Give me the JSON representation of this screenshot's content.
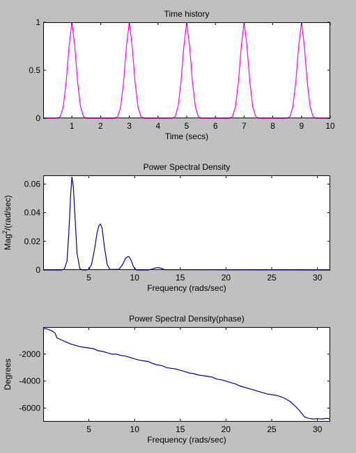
{
  "window": {
    "background": "#c0c0c0"
  },
  "chart_data": [
    {
      "type": "line",
      "title": "Time history",
      "xlabel": "Time (secs)",
      "ylabel": "",
      "xlim": [
        0,
        10
      ],
      "ylim": [
        0,
        1
      ],
      "xticks": [
        1,
        2,
        3,
        4,
        5,
        6,
        7,
        8,
        9,
        10
      ],
      "xtick_labels": [
        "1",
        "2",
        "3",
        "4",
        "5",
        "6",
        "7",
        "8",
        "9",
        "10"
      ],
      "yticks": [
        0,
        0.5,
        1
      ],
      "ytick_labels": [
        "0",
        "0.5",
        "1"
      ],
      "grid": false,
      "series": [
        {
          "color": "#ff00ff",
          "x": [
            0,
            0.5,
            0.6,
            0.7,
            0.8,
            0.9,
            1.0,
            1.1,
            1.2,
            1.3,
            1.4,
            1.5,
            2.5,
            2.6,
            2.7,
            2.8,
            2.9,
            3.0,
            3.1,
            3.2,
            3.3,
            3.4,
            3.5,
            4.5,
            4.6,
            4.7,
            4.8,
            4.9,
            5.0,
            5.1,
            5.2,
            5.3,
            5.4,
            5.5,
            6.5,
            6.6,
            6.7,
            6.8,
            6.9,
            7.0,
            7.1,
            7.2,
            7.3,
            7.4,
            7.5,
            8.5,
            8.6,
            8.7,
            8.8,
            8.9,
            9.0,
            9.1,
            9.2,
            9.3,
            9.4,
            9.5,
            10
          ],
          "y": [
            0,
            0,
            0.02,
            0.12,
            0.38,
            0.75,
            1.0,
            0.75,
            0.38,
            0.12,
            0.02,
            0,
            0,
            0.02,
            0.12,
            0.38,
            0.75,
            1.0,
            0.75,
            0.38,
            0.12,
            0.02,
            0,
            0,
            0.02,
            0.12,
            0.38,
            0.75,
            1.0,
            0.75,
            0.38,
            0.12,
            0.02,
            0,
            0,
            0.02,
            0.12,
            0.38,
            0.75,
            1.0,
            0.75,
            0.38,
            0.12,
            0.02,
            0,
            0,
            0.02,
            0.12,
            0.38,
            0.75,
            1.0,
            0.75,
            0.38,
            0.12,
            0.02,
            0,
            0
          ]
        }
      ]
    },
    {
      "type": "line",
      "title": "Power Spectral Density",
      "xlabel": "Frequency (rads/sec)",
      "ylabel": "Mag^2/(rad/sec)",
      "xlim": [
        0,
        31.4
      ],
      "ylim": [
        0,
        0.066
      ],
      "xticks": [
        5,
        10,
        15,
        20,
        25,
        30
      ],
      "xtick_labels": [
        "5",
        "10",
        "15",
        "20",
        "25",
        "30"
      ],
      "yticks": [
        0,
        0.02,
        0.04,
        0.06
      ],
      "ytick_labels": [
        "0",
        "0.02",
        "0.04",
        "0.06"
      ],
      "grid": false,
      "series": [
        {
          "color": "#00008b",
          "x": [
            0,
            2.0,
            2.3,
            2.6,
            2.8,
            3.0,
            3.14,
            3.3,
            3.5,
            3.7,
            4.0,
            4.3,
            4.7,
            5.0,
            5.3,
            5.6,
            5.9,
            6.1,
            6.28,
            6.45,
            6.7,
            7.0,
            7.3,
            8.3,
            8.7,
            9.0,
            9.3,
            9.42,
            9.6,
            9.9,
            10.2,
            11.5,
            12.0,
            12.3,
            12.57,
            12.9,
            13.3,
            31.4
          ],
          "y": [
            0,
            0,
            0.0005,
            0.006,
            0.025,
            0.052,
            0.065,
            0.058,
            0.035,
            0.012,
            0.001,
            0,
            0,
            0.0005,
            0.004,
            0.014,
            0.026,
            0.031,
            0.032,
            0.029,
            0.016,
            0.004,
            0.0003,
            0.0005,
            0.004,
            0.008,
            0.0095,
            0.009,
            0.007,
            0.002,
            0,
            0,
            0.0008,
            0.0015,
            0.0017,
            0.0012,
            0.0002,
            0
          ]
        }
      ]
    },
    {
      "type": "line",
      "title": "Power Spectral Density(phase)",
      "xlabel": "Frequency (rads/sec)",
      "ylabel": "Degrees",
      "xlim": [
        0,
        31.4
      ],
      "ylim": [
        -7000,
        0
      ],
      "xticks": [
        5,
        10,
        15,
        20,
        25,
        30
      ],
      "xtick_labels": [
        "5",
        "10",
        "15",
        "20",
        "25",
        "30"
      ],
      "yticks": [
        -6000,
        -4000,
        -2000
      ],
      "ytick_labels": [
        "-6000",
        "-4000",
        "-2000"
      ],
      "grid": false,
      "series": [
        {
          "color": "#00008b",
          "x": [
            0,
            0.5,
            1.0,
            1.3,
            1.5,
            2.0,
            2.5,
            3.0,
            3.5,
            4.0,
            4.5,
            5.0,
            5.5,
            6.0,
            6.5,
            7.0,
            7.5,
            8.0,
            8.5,
            9.0,
            9.5,
            10.0,
            10.5,
            11.0,
            11.5,
            12.0,
            12.5,
            13.0,
            13.5,
            14.0,
            14.5,
            15.0,
            15.5,
            16.0,
            16.5,
            17.0,
            17.5,
            18.0,
            18.5,
            19.0,
            19.5,
            20.0,
            20.5,
            21.0,
            21.5,
            22.0,
            22.5,
            23.0,
            23.5,
            24.0,
            24.5,
            25.0,
            25.5,
            26.0,
            26.5,
            27.0,
            27.5,
            28.0,
            28.3,
            28.6,
            29.0,
            29.5,
            30.0,
            30.5,
            31.0,
            31.4
          ],
          "y": [
            -100,
            -150,
            -300,
            -450,
            -800,
            -950,
            -1100,
            -1250,
            -1350,
            -1450,
            -1500,
            -1550,
            -1600,
            -1750,
            -1800,
            -1900,
            -2000,
            -2000,
            -2100,
            -2150,
            -2250,
            -2350,
            -2450,
            -2500,
            -2550,
            -2700,
            -2800,
            -2850,
            -3000,
            -3050,
            -3100,
            -3200,
            -3300,
            -3400,
            -3450,
            -3550,
            -3600,
            -3650,
            -3700,
            -3850,
            -3900,
            -4000,
            -4100,
            -4200,
            -4350,
            -4450,
            -4550,
            -4650,
            -4750,
            -4850,
            -4950,
            -5000,
            -5050,
            -5150,
            -5300,
            -5500,
            -5800,
            -6150,
            -6400,
            -6650,
            -6750,
            -6800,
            -6780,
            -6800,
            -6750,
            -6800
          ]
        }
      ]
    }
  ]
}
